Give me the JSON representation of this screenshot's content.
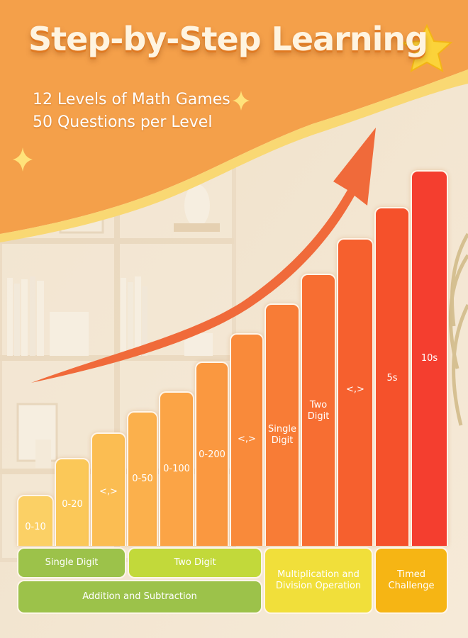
{
  "header": {
    "title": "Step-by-Step Learning",
    "subtitle_line1": "12 Levels of Math Games",
    "subtitle_line2": "50 Questions per Level"
  },
  "levels": [
    {
      "label": "0-10",
      "level": 1
    },
    {
      "label": "0-20",
      "level": 2
    },
    {
      "label": "<,>",
      "level": 3
    },
    {
      "label": "0-50",
      "level": 4
    },
    {
      "label": "0-100",
      "level": 5
    },
    {
      "label": "0-200",
      "level": 6
    },
    {
      "label": "<,>",
      "level": 7
    },
    {
      "label": "Single\nDigit",
      "level": 8
    },
    {
      "label": "Two\nDigit",
      "level": 9
    },
    {
      "label": "<,>",
      "level": 10
    },
    {
      "label": "5s",
      "level": 11
    },
    {
      "label": "10s",
      "level": 12
    }
  ],
  "categories": {
    "single_digit": "Single Digit",
    "two_digit": "Two Digit",
    "addition_subtraction": "Addition and Subtraction",
    "multiplication_division": "Multiplication and\nDivision Operation",
    "timed_challenge": "Timed\nChallenge"
  },
  "colors": {
    "banner": "#f4a04a",
    "wave": "#f9d873",
    "arrow": "#f06a3a",
    "cat_green": "#9cc24a",
    "cat_lime": "#c2d93a",
    "cat_yellow": "#f1df3a",
    "cat_orange": "#f6b514"
  }
}
